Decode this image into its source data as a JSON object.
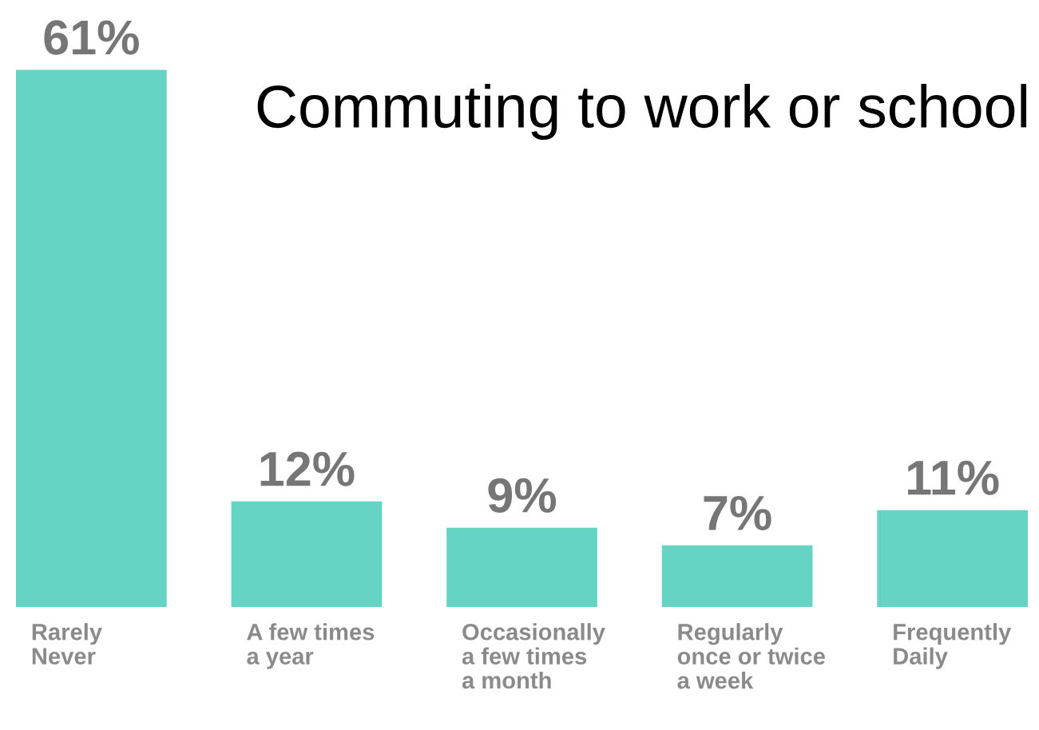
{
  "chart_data": {
    "type": "bar",
    "title": "Commuting to work or school",
    "categories": [
      "Rarely\nNever",
      "A few times\na year",
      "Occasionally\na few times\na month",
      "Regularly\nonce or twice\na week",
      "Frequently\nDaily"
    ],
    "values": [
      61,
      12,
      9,
      7,
      11
    ],
    "value_labels": [
      "61%",
      "12%",
      "9%",
      "7%",
      "11%"
    ],
    "color": "#66d4c4"
  }
}
